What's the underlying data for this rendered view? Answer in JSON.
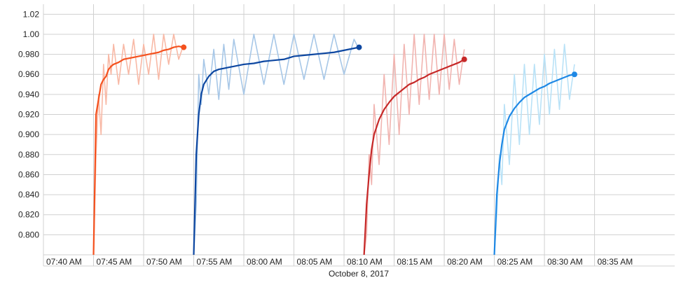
{
  "colors": {
    "run1": "#f4511e",
    "run1_light": "#f8b9a6",
    "run2": "#0d47a1",
    "run2_light": "#a7c7e7",
    "run3": "#c62828",
    "run3_light": "#f1b4b0",
    "run4": "#1e88e5",
    "run4_light": "#b9e2f7",
    "grid": "#d0d0d0",
    "axis_text": "#222222"
  },
  "chart_data": {
    "type": "line",
    "title": "",
    "xlabel": "October 8, 2017",
    "ylabel": "",
    "ylim": [
      0.78,
      1.03
    ],
    "xlim_minutes": [
      0,
      63
    ],
    "x_ticks": [
      "07:40 AM",
      "07:45 AM",
      "07:50 AM",
      "07:55 AM",
      "08:00 AM",
      "08:05 AM",
      "08:10 AM",
      "08:15 AM",
      "08:20 AM",
      "08:25 AM",
      "08:30 AM",
      "08:35 AM"
    ],
    "y_ticks": [
      "0.800",
      "0.820",
      "0.840",
      "0.860",
      "0.880",
      "0.900",
      "0.920",
      "0.940",
      "0.960",
      "0.980",
      "1.00",
      "1.02"
    ],
    "grid": true,
    "series": [
      {
        "x": [
          "07:45:00",
          "07:45:15",
          "07:45:30",
          "07:45:45",
          "07:46:00",
          "07:46:15",
          "07:46:30",
          "07:46:45",
          "07:47:00",
          "07:47:30",
          "07:48:00",
          "07:48:30",
          "07:49:00",
          "07:49:30",
          "07:50:00",
          "07:50:30",
          "07:51:00",
          "07:51:30",
          "07:52:00",
          "07:52:30",
          "07:53:00",
          "07:53:30",
          "07:54:00"
        ],
        "smoothed": [
          0.78,
          0.92,
          0.935,
          0.95,
          0.955,
          0.958,
          0.965,
          0.968,
          0.97,
          0.972,
          0.975,
          0.976,
          0.977,
          0.978,
          0.979,
          0.98,
          0.981,
          0.982,
          0.984,
          0.985,
          0.987,
          0.988,
          0.987
        ],
        "raw": [
          0.78,
          0.88,
          0.94,
          0.9,
          0.97,
          0.93,
          0.98,
          0.96,
          0.99,
          0.95,
          0.99,
          0.96,
          0.995,
          0.95,
          0.99,
          0.96,
          1.0,
          0.955,
          1.0,
          0.97,
          1.0,
          0.975,
          0.99
        ]
      },
      {
        "x": [
          "07:55:00",
          "07:55:15",
          "07:55:30",
          "07:55:45",
          "07:56:00",
          "07:56:30",
          "07:57:00",
          "07:57:30",
          "07:58:00",
          "07:58:30",
          "07:59:00",
          "08:00:00",
          "08:01:00",
          "08:02:00",
          "08:03:00",
          "08:04:00",
          "08:05:00",
          "08:06:00",
          "08:07:00",
          "08:08:00",
          "08:09:00",
          "08:10:00",
          "08:11:00",
          "08:11:30"
        ],
        "smoothed": [
          0.78,
          0.88,
          0.92,
          0.94,
          0.95,
          0.958,
          0.963,
          0.965,
          0.966,
          0.967,
          0.968,
          0.97,
          0.971,
          0.973,
          0.974,
          0.975,
          0.978,
          0.979,
          0.98,
          0.981,
          0.982,
          0.984,
          0.986,
          0.987
        ],
        "raw": [
          0.78,
          0.83,
          0.96,
          0.93,
          0.975,
          0.94,
          0.985,
          0.935,
          0.99,
          0.945,
          0.995,
          0.94,
          1.0,
          0.95,
          1.0,
          0.95,
          1.0,
          0.955,
          1.0,
          0.955,
          1.0,
          0.96,
          0.995,
          0.985
        ]
      },
      {
        "x": [
          "08:12:00",
          "08:12:15",
          "08:12:30",
          "08:12:45",
          "08:13:00",
          "08:13:30",
          "08:14:00",
          "08:14:30",
          "08:15:00",
          "08:15:30",
          "08:16:00",
          "08:16:30",
          "08:17:00",
          "08:17:30",
          "08:18:00",
          "08:18:30",
          "08:19:00",
          "08:19:30",
          "08:20:00",
          "08:20:30",
          "08:21:00",
          "08:21:30",
          "08:22:00"
        ],
        "smoothed": [
          0.78,
          0.83,
          0.86,
          0.885,
          0.9,
          0.915,
          0.925,
          0.932,
          0.938,
          0.942,
          0.946,
          0.95,
          0.952,
          0.955,
          0.957,
          0.96,
          0.962,
          0.964,
          0.966,
          0.968,
          0.97,
          0.972,
          0.975
        ],
        "raw": [
          0.78,
          0.8,
          0.88,
          0.85,
          0.93,
          0.87,
          0.96,
          0.89,
          0.98,
          0.9,
          0.99,
          0.92,
          1.0,
          0.93,
          1.0,
          0.935,
          1.0,
          0.94,
          1.0,
          0.945,
          0.995,
          0.95,
          0.985
        ]
      },
      {
        "x": [
          "08:25:00",
          "08:25:15",
          "08:25:30",
          "08:25:45",
          "08:26:00",
          "08:26:30",
          "08:27:00",
          "08:27:30",
          "08:28:00",
          "08:28:30",
          "08:29:00",
          "08:29:30",
          "08:30:00",
          "08:30:30",
          "08:31:00",
          "08:31:30",
          "08:32:00",
          "08:32:30",
          "08:33:00"
        ],
        "smoothed": [
          0.78,
          0.84,
          0.87,
          0.89,
          0.905,
          0.918,
          0.926,
          0.932,
          0.937,
          0.94,
          0.943,
          0.946,
          0.948,
          0.951,
          0.953,
          0.955,
          0.957,
          0.959,
          0.96
        ],
        "raw": [
          0.78,
          0.82,
          0.88,
          0.85,
          0.93,
          0.87,
          0.96,
          0.89,
          0.97,
          0.9,
          0.97,
          0.91,
          0.98,
          0.92,
          0.985,
          0.925,
          0.99,
          0.935,
          0.97
        ]
      }
    ]
  }
}
